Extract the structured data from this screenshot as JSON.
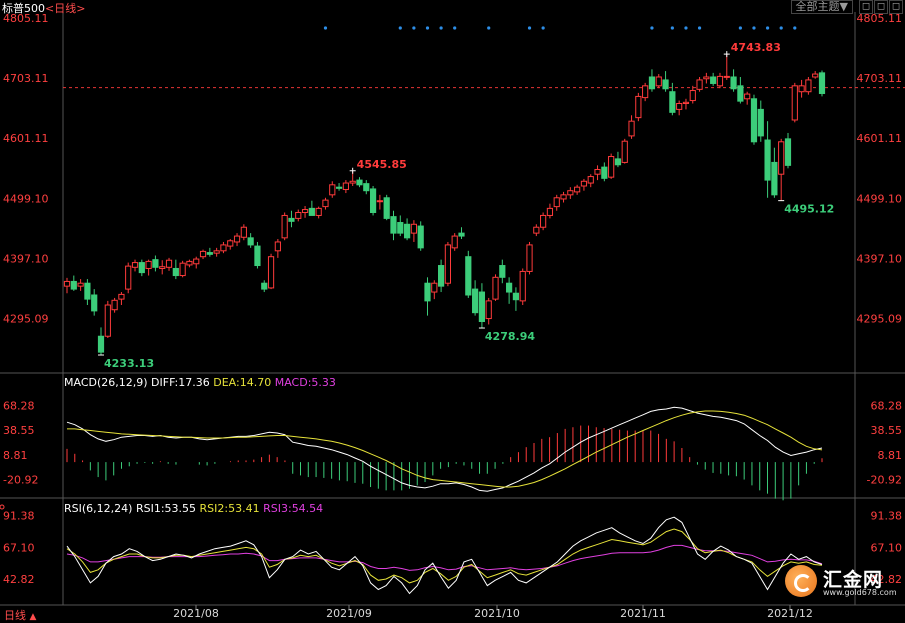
{
  "header": {
    "symbol": "标普500",
    "period": "<日线>",
    "theme_button": "全部主题▼",
    "icon_a": "◻",
    "icon_b": "◻",
    "icon_c": "◻"
  },
  "footer": {
    "period_label": "日线",
    "period_arrow": "▲"
  },
  "colors": {
    "up": "#ff3b3b",
    "down": "#3ccd7a",
    "diff": "#ffffff",
    "dea": "#e6e23a",
    "macd": "#e040e0",
    "rsi1": "#ffffff",
    "rsi2": "#e6e23a",
    "rsi3": "#e040e0",
    "axis_text": "#ff4040",
    "grid": "#1a1a1a"
  },
  "chart_data": [
    {
      "type": "candlestick",
      "title": "标普500<日线>",
      "y_ticks": [
        "4805.11",
        "4703.11",
        "4601.11",
        "4499.10",
        "4397.10",
        "4295.09"
      ],
      "ylim": [
        4206,
        4805.11
      ],
      "x_ticks": [
        "2021/08",
        "2021/09",
        "2021/10",
        "2021/11",
        "2021/12"
      ],
      "reference_price": 4687,
      "annotations": [
        {
          "label": "4233.13",
          "value": 4233.13,
          "kind": "low"
        },
        {
          "label": "4545.85",
          "value": 4545.85,
          "kind": "high"
        },
        {
          "label": "4278.94",
          "value": 4278.94,
          "kind": "low"
        },
        {
          "label": "4743.83",
          "value": 4743.83,
          "kind": "high"
        },
        {
          "label": "4495.12",
          "value": 4495.12,
          "kind": "low"
        }
      ],
      "candles": [
        [
          4350,
          4364,
          4338,
          4358
        ],
        [
          4358,
          4368,
          4342,
          4345
        ],
        [
          4350,
          4362,
          4342,
          4355
        ],
        [
          4355,
          4362,
          4318,
          4328
        ],
        [
          4335,
          4345,
          4300,
          4308
        ],
        [
          4265,
          4280,
          4233.13,
          4238
        ],
        [
          4265,
          4325,
          4262,
          4318
        ],
        [
          4310,
          4330,
          4305,
          4326
        ],
        [
          4328,
          4340,
          4318,
          4336
        ],
        [
          4345,
          4390,
          4338,
          4384
        ],
        [
          4382,
          4395,
          4375,
          4390
        ],
        [
          4390,
          4395,
          4367,
          4373
        ],
        [
          4380,
          4395,
          4368,
          4392
        ],
        [
          4395,
          4402,
          4375,
          4382
        ],
        [
          4380,
          4394,
          4370,
          4383
        ],
        [
          4382,
          4398,
          4376,
          4394
        ],
        [
          4380,
          4395,
          4362,
          4368
        ],
        [
          4368,
          4393,
          4365,
          4389
        ],
        [
          4386,
          4395,
          4382,
          4392
        ],
        [
          4388,
          4400,
          4380,
          4396
        ],
        [
          4400,
          4412,
          4396,
          4409
        ],
        [
          4407,
          4415,
          4400,
          4404
        ],
        [
          4406,
          4415,
          4400,
          4410
        ],
        [
          4410,
          4425,
          4406,
          4420
        ],
        [
          4418,
          4430,
          4412,
          4427
        ],
        [
          4425,
          4440,
          4418,
          4435
        ],
        [
          4433,
          4455,
          4428,
          4450
        ],
        [
          4432,
          4440,
          4415,
          4420
        ],
        [
          4418,
          4425,
          4380,
          4385
        ],
        [
          4355,
          4360,
          4340,
          4345
        ],
        [
          4347,
          4405,
          4345,
          4400
        ],
        [
          4410,
          4430,
          4398,
          4425
        ],
        [
          4432,
          4475,
          4428,
          4470
        ],
        [
          4465,
          4478,
          4450,
          4460
        ],
        [
          4465,
          4480,
          4460,
          4475
        ],
        [
          4475,
          4486,
          4466,
          4480
        ],
        [
          4482,
          4495,
          4470,
          4470
        ],
        [
          4470,
          4485,
          4465,
          4482
        ],
        [
          4485,
          4500,
          4480,
          4496
        ],
        [
          4505,
          4528,
          4500,
          4522
        ],
        [
          4518,
          4525,
          4512,
          4516
        ],
        [
          4514,
          4530,
          4508,
          4525
        ],
        [
          4525,
          4545.85,
          4520,
          4528
        ],
        [
          4530,
          4535,
          4518,
          4522
        ],
        [
          4524,
          4530,
          4506,
          4512
        ],
        [
          4515,
          4520,
          4470,
          4475
        ],
        [
          4495,
          4505,
          4480,
          4495
        ],
        [
          4500,
          4505,
          4462,
          4465
        ],
        [
          4468,
          4478,
          4428,
          4440
        ],
        [
          4458,
          4470,
          4435,
          4440
        ],
        [
          4455,
          4465,
          4428,
          4432
        ],
        [
          4440,
          4462,
          4425,
          4455
        ],
        [
          4452,
          4460,
          4410,
          4415
        ],
        [
          4355,
          4365,
          4300,
          4325
        ],
        [
          4340,
          4360,
          4328,
          4355
        ],
        [
          4385,
          4395,
          4340,
          4350
        ],
        [
          4355,
          4425,
          4350,
          4420
        ],
        [
          4415,
          4440,
          4410,
          4435
        ],
        [
          4440,
          4450,
          4430,
          4435
        ],
        [
          4400,
          4410,
          4330,
          4335
        ],
        [
          4345,
          4360,
          4300,
          4305
        ],
        [
          4340,
          4355,
          4278.94,
          4290
        ],
        [
          4295,
          4330,
          4285,
          4325
        ],
        [
          4328,
          4370,
          4325,
          4365
        ],
        [
          4385,
          4395,
          4355,
          4365
        ],
        [
          4355,
          4365,
          4320,
          4340
        ],
        [
          4338,
          4348,
          4308,
          4327
        ],
        [
          4325,
          4380,
          4318,
          4375
        ],
        [
          4375,
          4425,
          4370,
          4420
        ],
        [
          4440,
          4455,
          4435,
          4450
        ],
        [
          4450,
          4475,
          4445,
          4470
        ],
        [
          4470,
          4490,
          4465,
          4482
        ],
        [
          4485,
          4505,
          4478,
          4500
        ],
        [
          4498,
          4510,
          4492,
          4505
        ],
        [
          4505,
          4518,
          4498,
          4512
        ],
        [
          4510,
          4522,
          4505,
          4518
        ],
        [
          4520,
          4532,
          4512,
          4528
        ],
        [
          4525,
          4540,
          4518,
          4536
        ],
        [
          4540,
          4555,
          4530,
          4548
        ],
        [
          4552,
          4560,
          4528,
          4533
        ],
        [
          4535,
          4575,
          4532,
          4570
        ],
        [
          4566,
          4578,
          4552,
          4556
        ],
        [
          4560,
          4600,
          4558,
          4596
        ],
        [
          4605,
          4640,
          4600,
          4630
        ],
        [
          4636,
          4678,
          4630,
          4672
        ],
        [
          4670,
          4695,
          4664,
          4690
        ],
        [
          4705,
          4718,
          4680,
          4685
        ],
        [
          4690,
          4710,
          4686,
          4705
        ],
        [
          4700,
          4715,
          4680,
          4685
        ],
        [
          4680,
          4695,
          4640,
          4645
        ],
        [
          4650,
          4665,
          4640,
          4660
        ],
        [
          4660,
          4668,
          4650,
          4662
        ],
        [
          4665,
          4690,
          4660,
          4682
        ],
        [
          4684,
          4705,
          4680,
          4700
        ],
        [
          4702,
          4712,
          4694,
          4705
        ],
        [
          4705,
          4712,
          4690,
          4694
        ],
        [
          4690,
          4712,
          4686,
          4706
        ],
        [
          4705,
          4743.83,
          4700,
          4706
        ],
        [
          4705,
          4718,
          4680,
          4685
        ],
        [
          4690,
          4705,
          4660,
          4664
        ],
        [
          4668,
          4680,
          4658,
          4676
        ],
        [
          4668,
          4675,
          4590,
          4595
        ],
        [
          4650,
          4665,
          4595,
          4605
        ],
        [
          4598,
          4630,
          4500,
          4530
        ],
        [
          4560,
          4585,
          4500,
          4505
        ],
        [
          4540,
          4600,
          4495.12,
          4595
        ],
        [
          4600,
          4610,
          4550,
          4555
        ],
        [
          4632,
          4695,
          4628,
          4690
        ],
        [
          4680,
          4700,
          4670,
          4690
        ],
        [
          4680,
          4705,
          4675,
          4700
        ],
        [
          4705,
          4715,
          4702,
          4710
        ],
        [
          4712,
          4716,
          4672,
          4677
        ]
      ]
    },
    {
      "type": "line",
      "title": "MACD(26,12,9)",
      "legend": [
        {
          "name": "DIFF",
          "value": "17.36"
        },
        {
          "name": "DEA",
          "value": "14.70"
        },
        {
          "name": "MACD",
          "value": "5.33"
        }
      ],
      "y_ticks": [
        "68.28",
        "38.55",
        "8.81",
        "-20.92"
      ],
      "ylim": [
        -42,
        82
      ],
      "diff": [
        48,
        45,
        40,
        33,
        28,
        25,
        27,
        30,
        31,
        32,
        32,
        31,
        32,
        30,
        29,
        30,
        30,
        28,
        27,
        28,
        29,
        30,
        31,
        31,
        32,
        34,
        36,
        35,
        33,
        24,
        22,
        20,
        19,
        17,
        15,
        12,
        9,
        5,
        1,
        -5,
        -10,
        -15,
        -20,
        -25,
        -28,
        -30,
        -31,
        -29,
        -26,
        -26,
        -25,
        -27,
        -30,
        -34,
        -35,
        -33,
        -31,
        -27,
        -23,
        -18,
        -13,
        -7,
        -2,
        5,
        12,
        18,
        24,
        29,
        33,
        37,
        41,
        45,
        49,
        53,
        57,
        61,
        63,
        64,
        66,
        65,
        62,
        59,
        57,
        55,
        54,
        52,
        50,
        46,
        39,
        32,
        26,
        18,
        12,
        8,
        10,
        12,
        15,
        17
      ],
      "dea": [
        40,
        40,
        39,
        38,
        37,
        36,
        35,
        34,
        33.5,
        33,
        32.5,
        32,
        31.5,
        31,
        30.5,
        30,
        30,
        29.5,
        29,
        29,
        29,
        29.5,
        30,
        30,
        30.5,
        31,
        31.5,
        32,
        32,
        31,
        30,
        29,
        28,
        26.5,
        25,
        23,
        20.5,
        17.5,
        14,
        10,
        6,
        2,
        -3,
        -8,
        -12,
        -16,
        -19,
        -21,
        -22,
        -23,
        -24,
        -25,
        -26,
        -27,
        -28,
        -29,
        -30,
        -30,
        -29,
        -27,
        -24.5,
        -21,
        -17,
        -12.5,
        -8,
        -3,
        2,
        7,
        12,
        16.5,
        21,
        25.5,
        30,
        34,
        38,
        42,
        46,
        50,
        53.5,
        56.5,
        59,
        60.5,
        61.5,
        61.5,
        61,
        60,
        58.5,
        56.5,
        53,
        49,
        45,
        40,
        35,
        30,
        24,
        19,
        16,
        14.7
      ]
    },
    {
      "type": "line",
      "title": "RSI(6,12,24)",
      "legend": [
        {
          "name": "RSI1",
          "value": "53.55"
        },
        {
          "name": "RSI2",
          "value": "53.41"
        },
        {
          "name": "RSI3",
          "value": "54.54"
        }
      ],
      "y_ticks": [
        "91.38",
        "67.10",
        "42.82"
      ],
      "ylim": [
        24,
        100
      ],
      "rsi1": [
        68,
        60,
        50,
        40,
        45,
        55,
        60,
        62,
        66,
        64,
        60,
        57,
        58,
        60,
        62,
        61,
        59,
        62,
        64,
        66,
        67,
        68,
        70,
        72,
        69,
        60,
        44,
        50,
        58,
        60,
        65,
        62,
        64,
        58,
        52,
        50,
        55,
        60,
        53,
        40,
        35,
        38,
        45,
        40,
        32,
        38,
        50,
        55,
        45,
        36,
        42,
        56,
        58,
        48,
        38,
        42,
        45,
        48,
        42,
        40,
        44,
        48,
        52,
        56,
        62,
        68,
        72,
        75,
        78,
        80,
        82,
        78,
        75,
        72,
        70,
        74,
        82,
        88,
        90,
        86,
        74,
        62,
        58,
        64,
        68,
        65,
        60,
        58,
        55,
        45,
        35,
        45,
        55,
        62,
        58,
        60,
        56,
        54
      ],
      "rsi2": [
        66,
        62,
        56,
        48,
        50,
        55,
        58,
        60,
        62,
        62,
        60,
        59,
        59,
        60,
        61,
        61,
        60,
        61,
        62,
        63,
        64,
        65,
        66,
        67,
        66,
        62,
        52,
        54,
        58,
        59,
        61,
        60,
        61,
        58,
        55,
        53,
        55,
        57,
        54,
        46,
        42,
        43,
        46,
        44,
        40,
        42,
        48,
        51,
        47,
        42,
        45,
        52,
        54,
        49,
        44,
        46,
        48,
        50,
        47,
        46,
        48,
        50,
        52,
        54,
        58,
        62,
        65,
        67,
        69,
        71,
        73,
        72,
        71,
        70,
        69,
        71,
        75,
        79,
        81,
        79,
        73,
        66,
        63,
        64,
        65,
        63,
        60,
        58,
        56,
        50,
        45,
        49,
        53,
        56,
        55,
        56,
        54,
        53.4
      ],
      "rsi3": [
        62,
        61,
        59,
        56,
        56,
        57,
        58,
        59,
        60,
        60,
        60,
        59.5,
        59.5,
        60,
        60,
        60,
        60,
        60,
        60.5,
        61,
        61.5,
        62,
        62,
        62.5,
        62,
        60.5,
        57,
        57,
        58,
        58.5,
        59,
        59,
        59,
        58,
        57,
        56,
        56,
        56.5,
        55.5,
        52.5,
        51,
        51,
        52,
        51,
        49.5,
        50,
        51.5,
        52.5,
        51.5,
        50,
        50.5,
        52.5,
        53,
        51.5,
        50,
        50.5,
        51,
        51.5,
        50.5,
        50,
        50.5,
        51,
        52,
        53,
        55,
        57,
        58.5,
        59.5,
        60.5,
        61.5,
        62.5,
        63,
        63,
        63,
        63,
        63.5,
        65,
        67,
        68.5,
        68.5,
        67,
        65.5,
        64.5,
        64.5,
        64.5,
        64,
        63,
        62,
        61,
        58.5,
        56,
        56.5,
        57.5,
        58,
        57.5,
        57.5,
        56.5,
        54.5
      ]
    }
  ],
  "brand": {
    "name": "汇金网",
    "url": "www.gold678.com"
  }
}
